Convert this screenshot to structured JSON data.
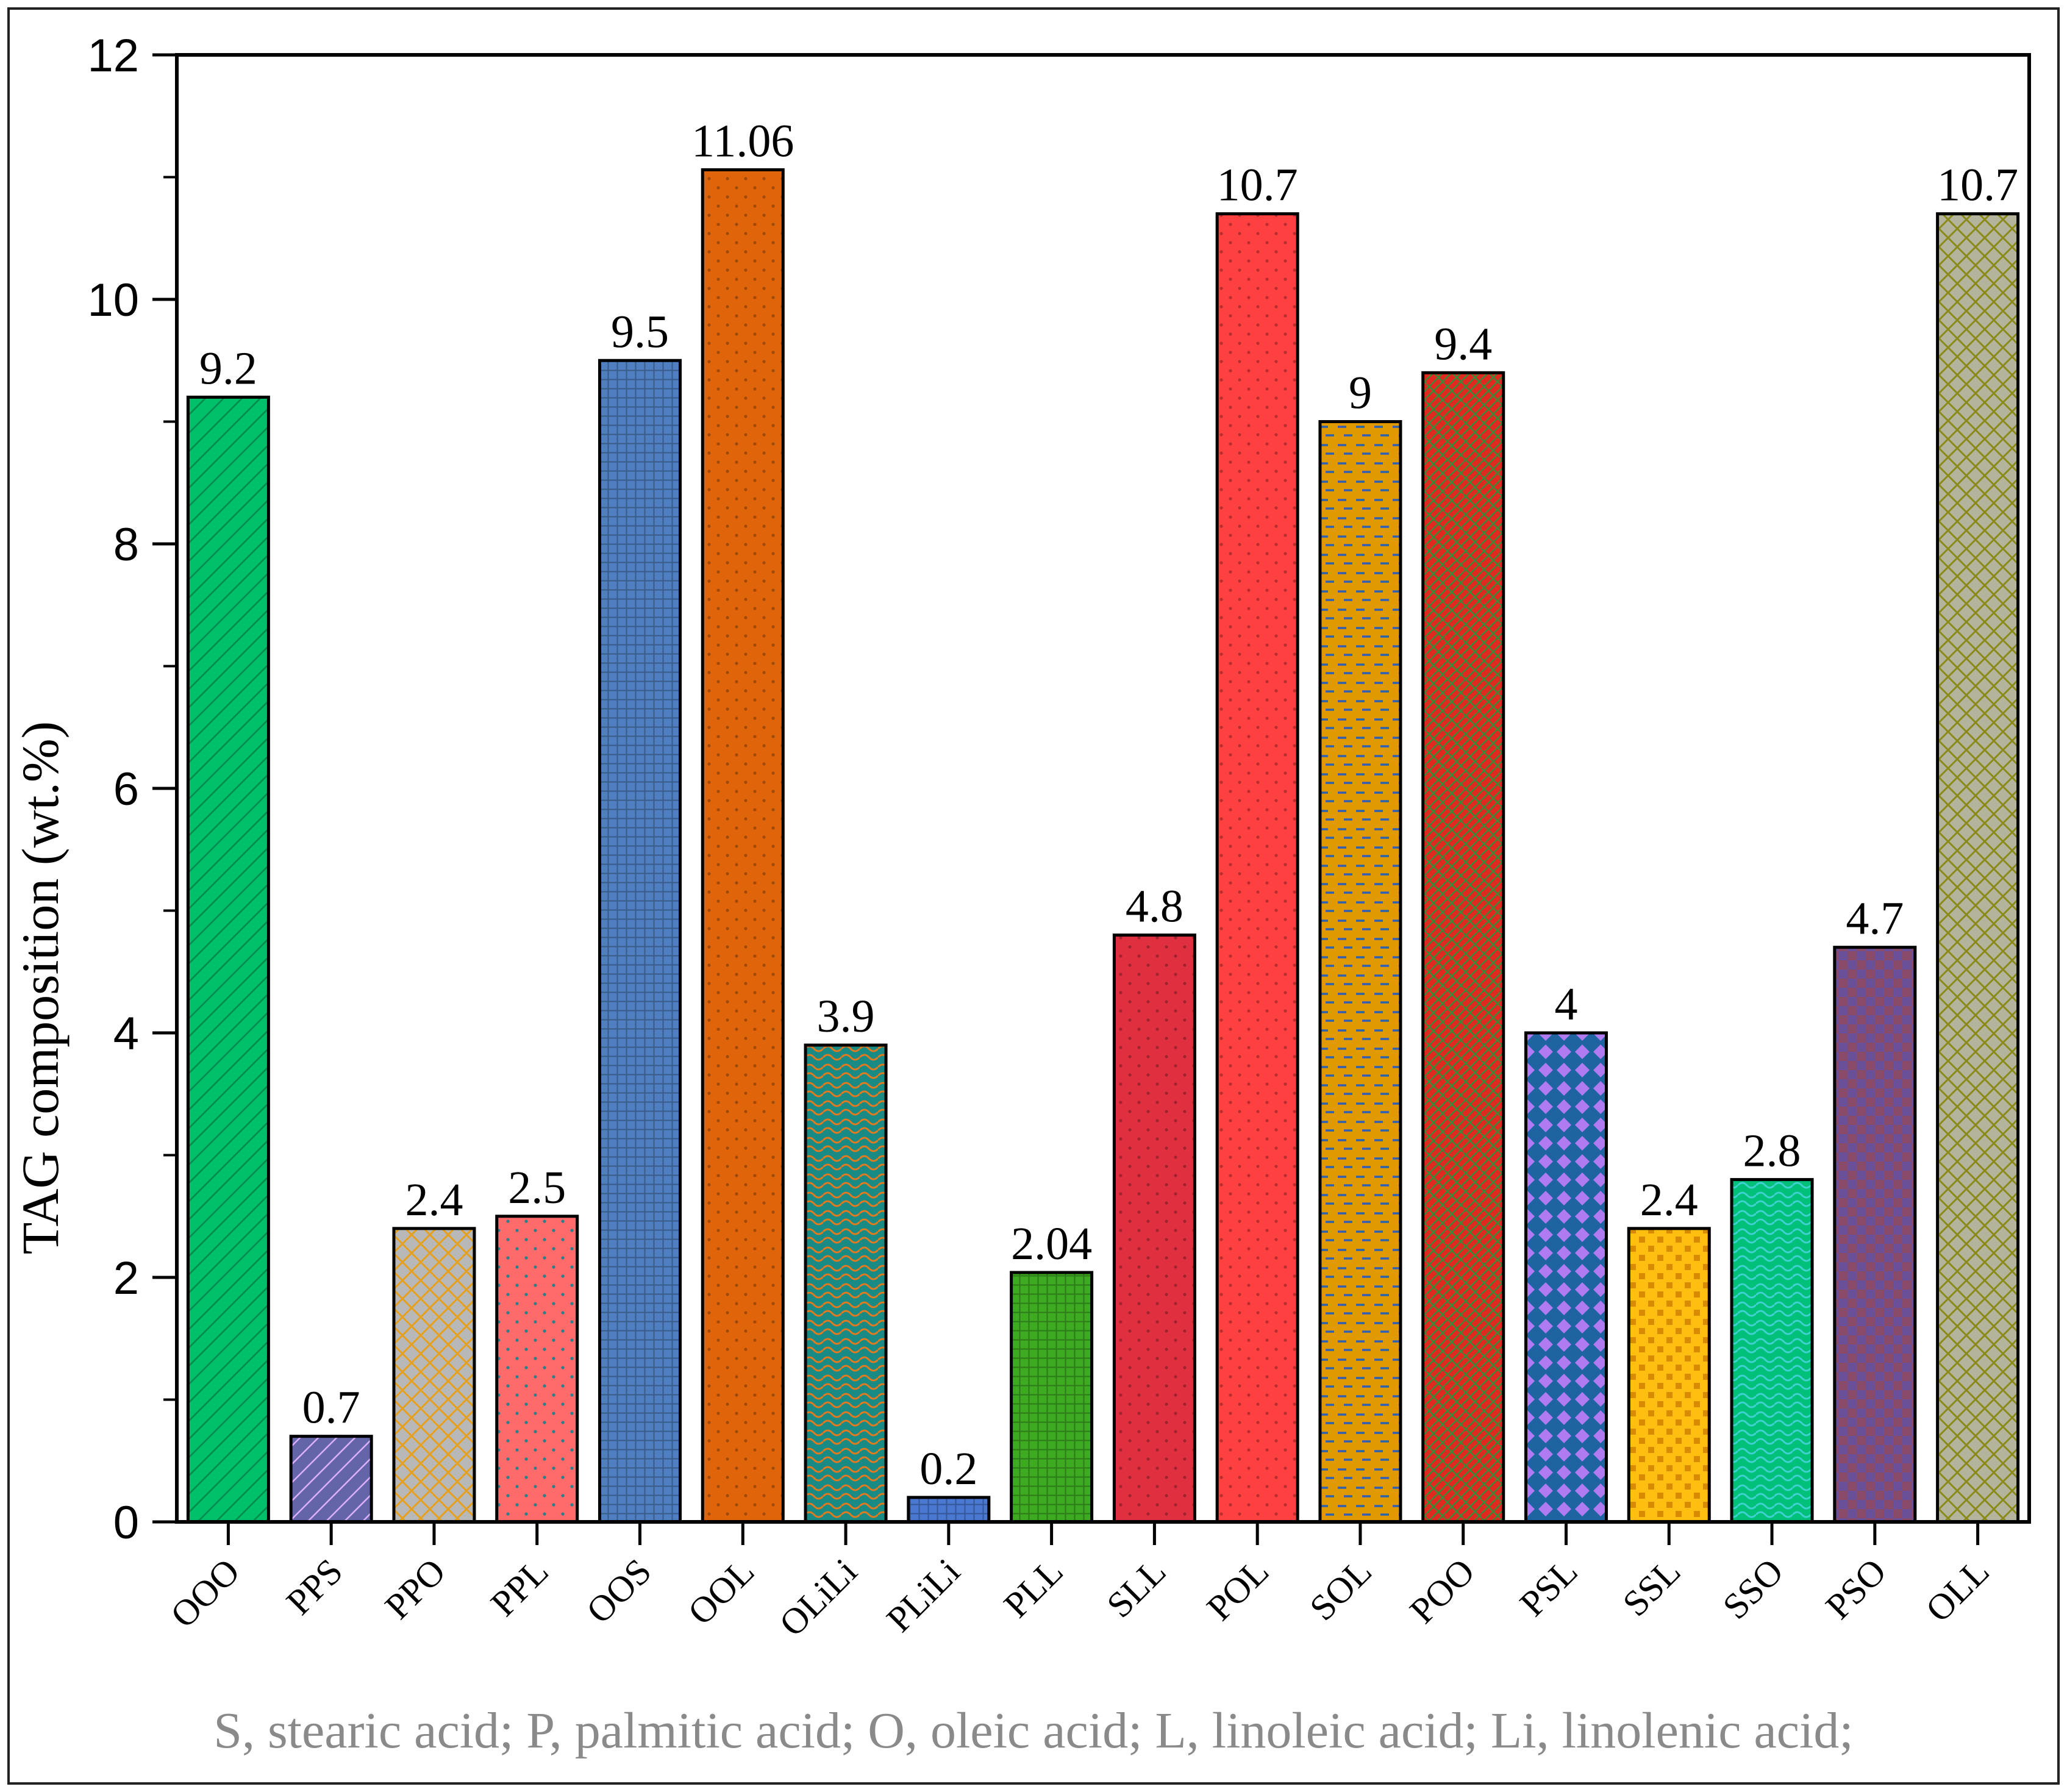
{
  "chart_data": {
    "type": "bar",
    "title": "",
    "xlabel": "",
    "ylabel": "TAG composition (wt.%)",
    "ylim": [
      0,
      12
    ],
    "yticks": [
      0,
      2,
      4,
      6,
      8,
      10,
      12
    ],
    "yticks_labels": [
      "0",
      "2",
      "4",
      "6",
      "8",
      "10",
      "12"
    ],
    "categories": [
      "OOO",
      "PPS",
      "PPO",
      "PPL",
      "OOS",
      "OOL",
      "OLiLi",
      "PLiLi",
      "PLL",
      "SLL",
      "POL",
      "SOL",
      "POO",
      "PSL",
      "SSL",
      "SSO",
      "PSO",
      "OLL"
    ],
    "values": [
      9.2,
      0.7,
      2.4,
      2.5,
      9.5,
      11.06,
      3.9,
      0.2,
      2.04,
      4.8,
      10.7,
      9,
      9.4,
      4,
      2.4,
      2.8,
      4.7,
      10.7
    ],
    "value_labels": [
      "9.2",
      "0.7",
      "2.4",
      "2.5",
      "9.5",
      "11.06",
      "3.9",
      "0.2",
      "2.04",
      "4.8",
      "10.7",
      "9",
      "9.4",
      "4",
      "2.4",
      "2.8",
      "4.7",
      "10.7"
    ],
    "colors": [
      "#00c06a",
      "#6464a8",
      "#b8b8b8",
      "#ff6b6b",
      "#4f7fc0",
      "#e0650a",
      "#1a8a84",
      "#4a78d0",
      "#3daa22",
      "#e03040",
      "#ff4040",
      "#e09a00",
      "#e02a20",
      "#1e64a0",
      "#ffbe10",
      "#00c07a",
      "#6a5098",
      "#b4b49c"
    ],
    "patterns": [
      "diagonal",
      "diagonal",
      "crosshatch",
      "dots",
      "grid",
      "dots",
      "waves",
      "grid",
      "grid",
      "dots",
      "dots",
      "dashes",
      "weave",
      "diamonds",
      "squares",
      "waves",
      "checker",
      "lattice"
    ],
    "footnote": "S, stearic acid; P, palmitic acid; O, oleic acid; L, linoleic acid; Li, linolenic acid;"
  }
}
